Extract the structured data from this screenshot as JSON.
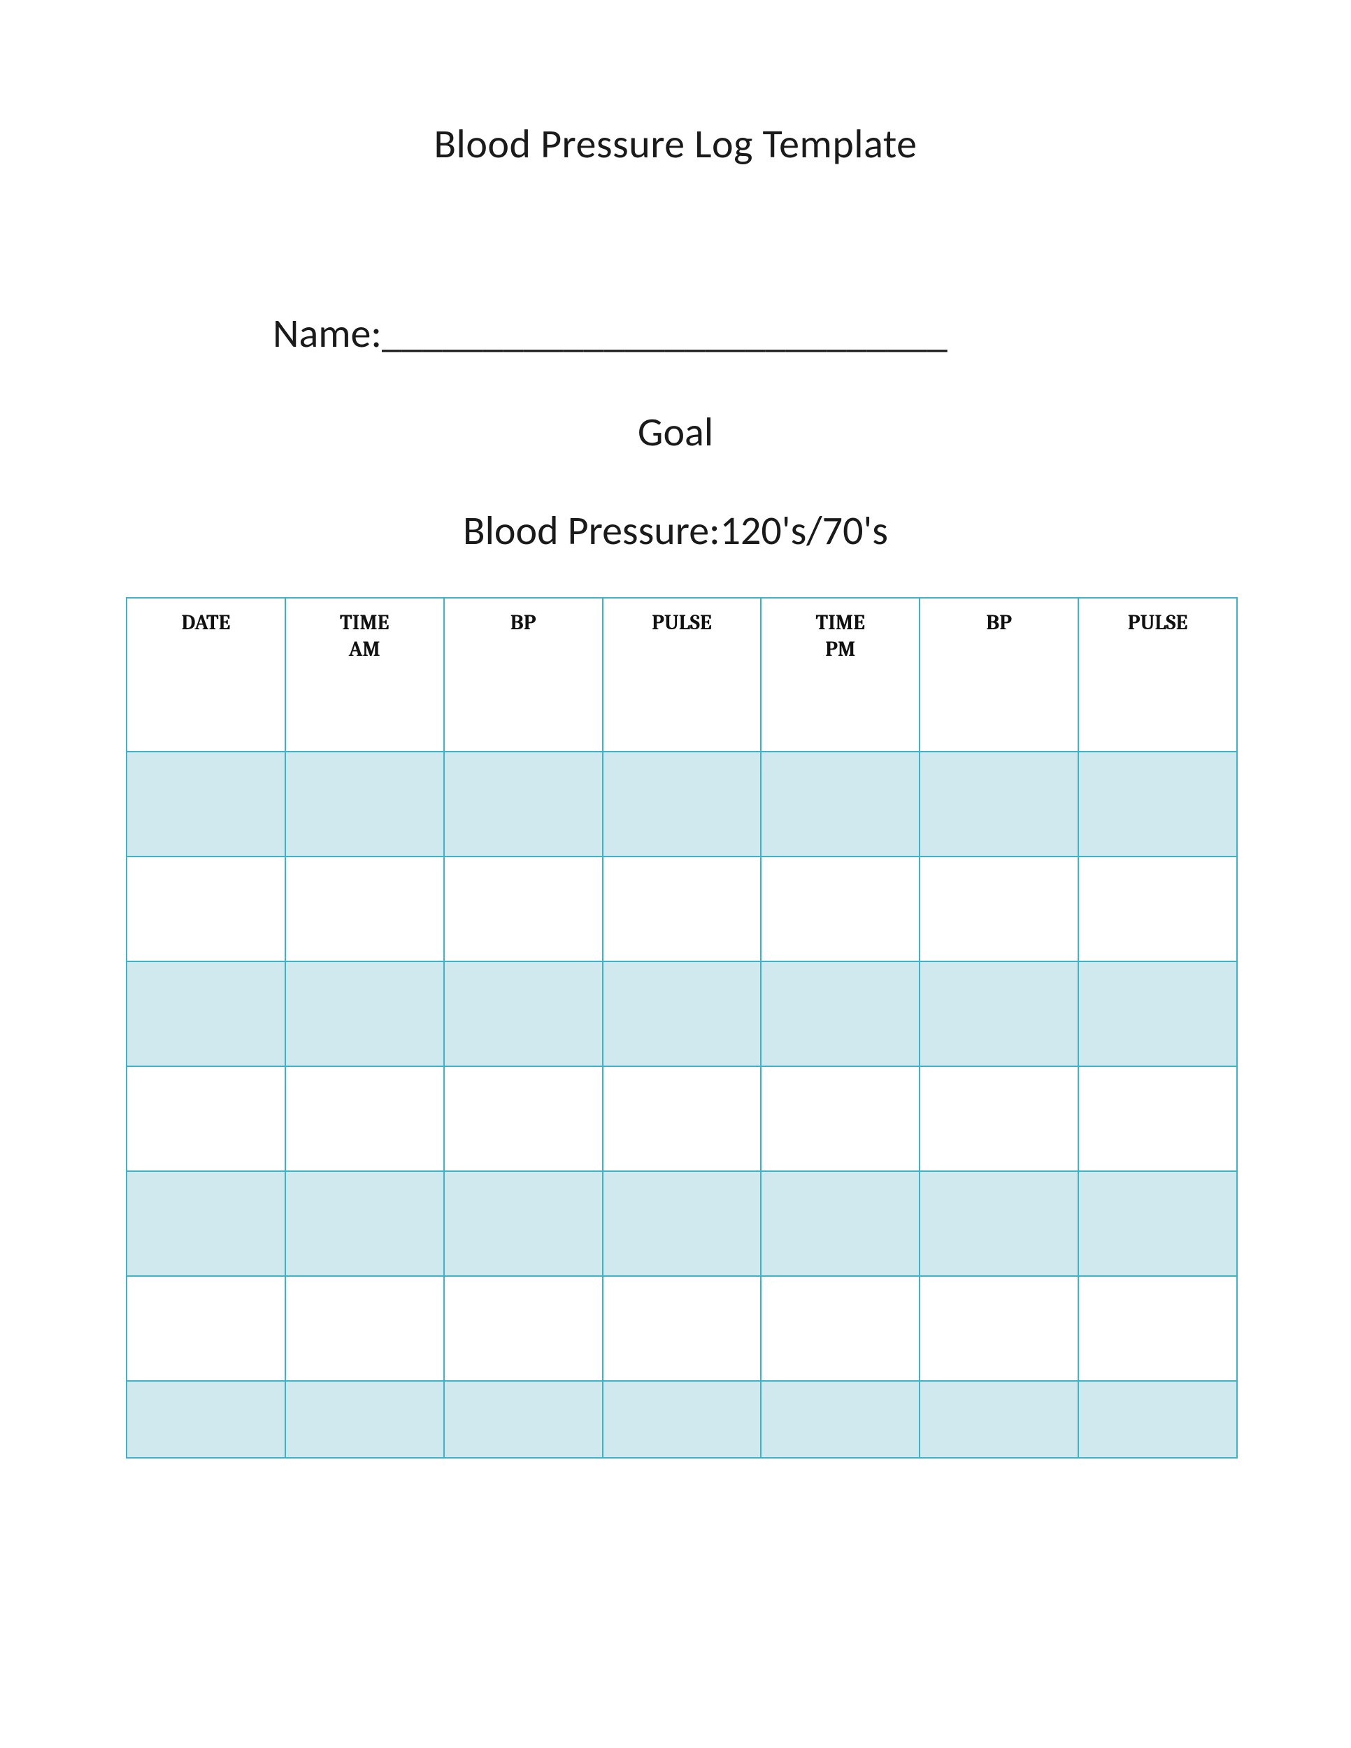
{
  "title": "Blood Pressure Log Template",
  "name_label": "Name:",
  "name_underline": "____________________________",
  "goal_label": "Goal",
  "bp_goal_text": "Blood Pressure:120's/70's",
  "table": {
    "type": "table",
    "border_color": "#3eb2c6",
    "shaded_fill": "#cfe9ef",
    "plain_fill": "#ffffff",
    "header_font": "Cambria, serif",
    "header_fontsize": 30,
    "header_weight": 700,
    "header_row_height": 220,
    "data_row_height": 150,
    "last_row_height": 110,
    "columns": [
      {
        "label": "DATE"
      },
      {
        "label": "TIME\nAM"
      },
      {
        "label": "BP"
      },
      {
        "label": "PULSE"
      },
      {
        "label": "TIME\nPM"
      },
      {
        "label": "BP"
      },
      {
        "label": "PULSE"
      }
    ],
    "rows": [
      {
        "shaded": true,
        "cells": [
          "",
          "",
          "",
          "",
          "",
          "",
          ""
        ]
      },
      {
        "shaded": false,
        "cells": [
          "",
          "",
          "",
          "",
          "",
          "",
          ""
        ]
      },
      {
        "shaded": true,
        "cells": [
          "",
          "",
          "",
          "",
          "",
          "",
          ""
        ]
      },
      {
        "shaded": false,
        "cells": [
          "",
          "",
          "",
          "",
          "",
          "",
          ""
        ]
      },
      {
        "shaded": true,
        "cells": [
          "",
          "",
          "",
          "",
          "",
          "",
          ""
        ]
      },
      {
        "shaded": false,
        "cells": [
          "",
          "",
          "",
          "",
          "",
          "",
          ""
        ]
      },
      {
        "shaded": true,
        "cells": [
          "",
          "",
          "",
          "",
          "",
          "",
          ""
        ]
      }
    ]
  }
}
